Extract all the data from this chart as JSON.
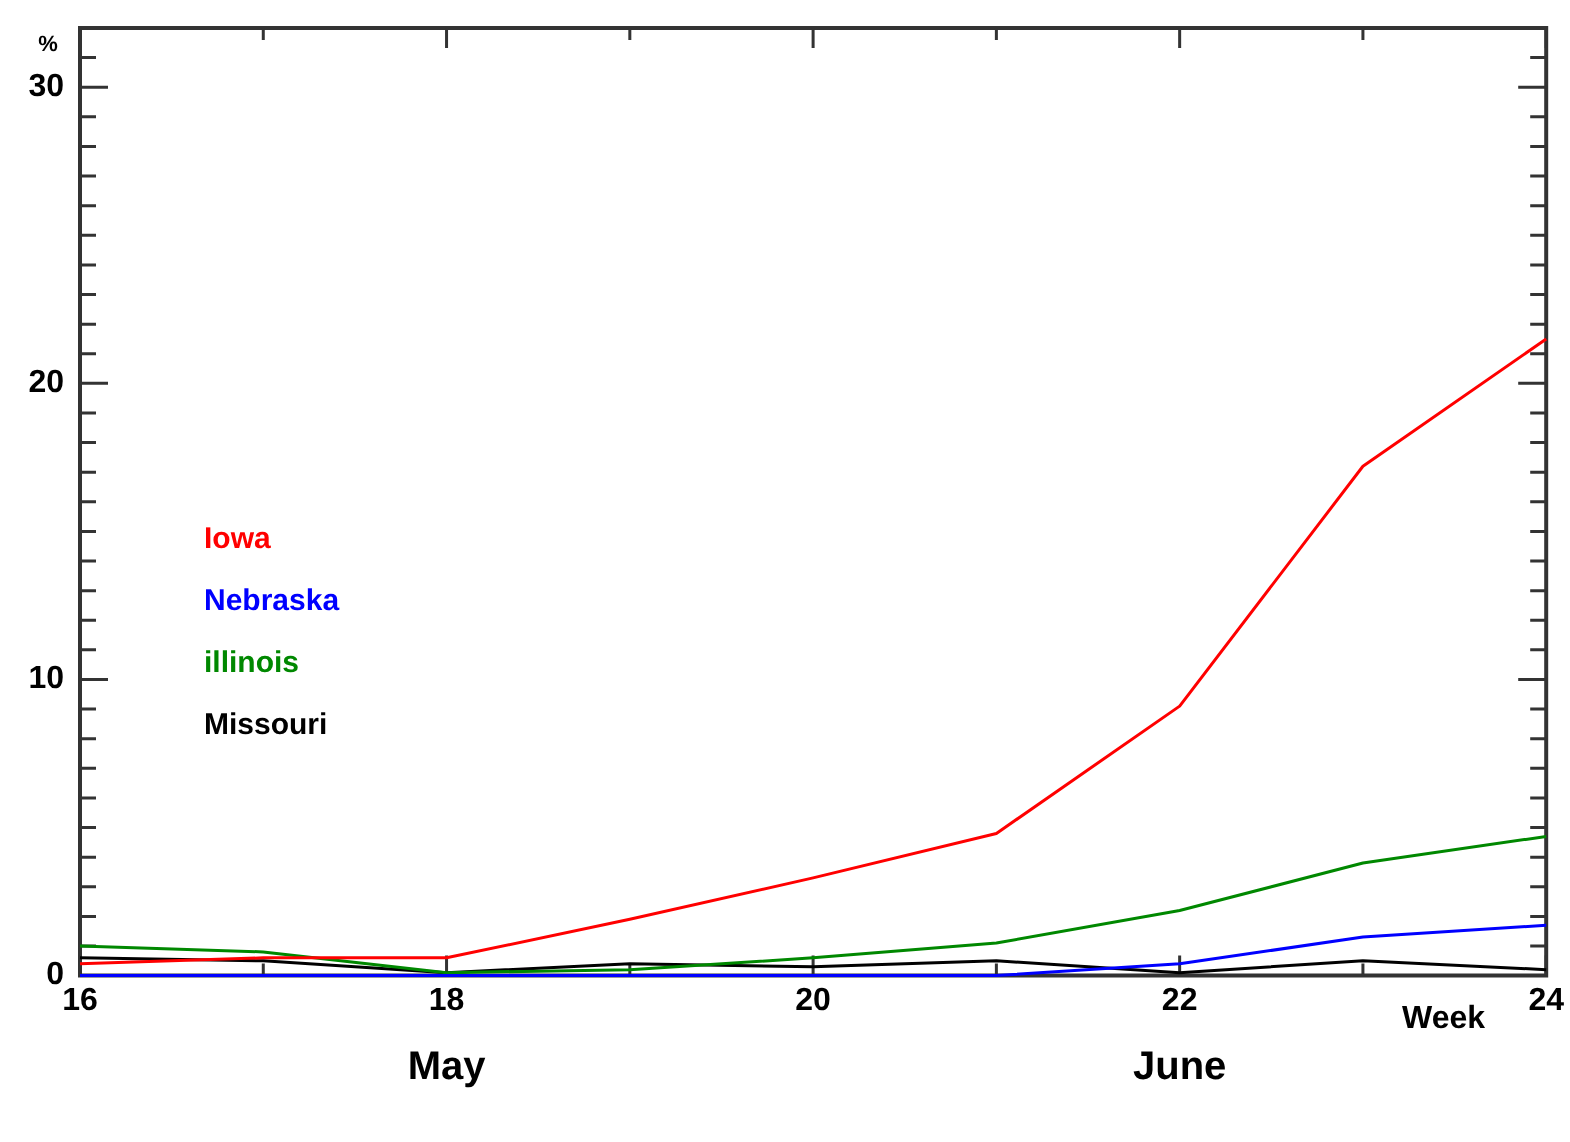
{
  "chart_data": {
    "type": "line",
    "ylabel": "%",
    "xlabel": "Week",
    "x": [
      16,
      17,
      18,
      19,
      20,
      21,
      22,
      23,
      24
    ],
    "xlim": [
      16,
      24
    ],
    "ylim": [
      0,
      32
    ],
    "xticks": [
      16,
      {
        "value": 17,
        "label": null
      },
      18,
      {
        "value": 19,
        "label": null
      },
      20,
      {
        "value": 21,
        "label": null
      },
      22,
      {
        "value": 23,
        "label": null
      },
      24
    ],
    "yticks": [
      0,
      {
        "value": 1,
        "label": null
      },
      {
        "value": 2,
        "label": null
      },
      {
        "value": 3,
        "label": null
      },
      {
        "value": 4,
        "label": null
      },
      {
        "value": 5,
        "label": null
      },
      {
        "value": 6,
        "label": null
      },
      {
        "value": 7,
        "label": null
      },
      {
        "value": 8,
        "label": null
      },
      {
        "value": 9,
        "label": null
      },
      10,
      {
        "value": 11,
        "label": null
      },
      {
        "value": 12,
        "label": null
      },
      {
        "value": 13,
        "label": null
      },
      {
        "value": 14,
        "label": null
      },
      {
        "value": 15,
        "label": null
      },
      {
        "value": 16,
        "label": null
      },
      {
        "value": 17,
        "label": null
      },
      {
        "value": 18,
        "label": null
      },
      {
        "value": 19,
        "label": null
      },
      20,
      {
        "value": 21,
        "label": null
      },
      {
        "value": 22,
        "label": null
      },
      {
        "value": 23,
        "label": null
      },
      {
        "value": 24,
        "label": null
      },
      {
        "value": 25,
        "label": null
      },
      {
        "value": 26,
        "label": null
      },
      {
        "value": 27,
        "label": null
      },
      {
        "value": 28,
        "label": null
      },
      {
        "value": 29,
        "label": null
      },
      30,
      {
        "value": 31,
        "label": null
      }
    ],
    "grid": false,
    "legend": "left",
    "marker": "none",
    "line_style": "solid",
    "annotations": [
      "May",
      "June"
    ],
    "series": [
      {
        "name": "Iowa",
        "color": "#ff0000",
        "values": [
          0.4,
          0.6,
          0.6,
          1.9,
          3.3,
          4.8,
          9.1,
          17.2,
          21.5
        ]
      },
      {
        "name": "Nebraska",
        "color": "#0000ff",
        "values": [
          0,
          0,
          0,
          0,
          0,
          0,
          0.4,
          1.3,
          1.7
        ]
      },
      {
        "name": "illinois",
        "color": "#008800",
        "values": [
          1.0,
          0.8,
          0.1,
          0.2,
          0.6,
          1.1,
          2.2,
          3.8,
          4.7
        ]
      },
      {
        "name": "Missouri",
        "color": "#000000",
        "values": [
          0.6,
          0.5,
          0.1,
          0.4,
          0.3,
          0.5,
          0.1,
          0.5,
          0.2
        ]
      }
    ]
  }
}
